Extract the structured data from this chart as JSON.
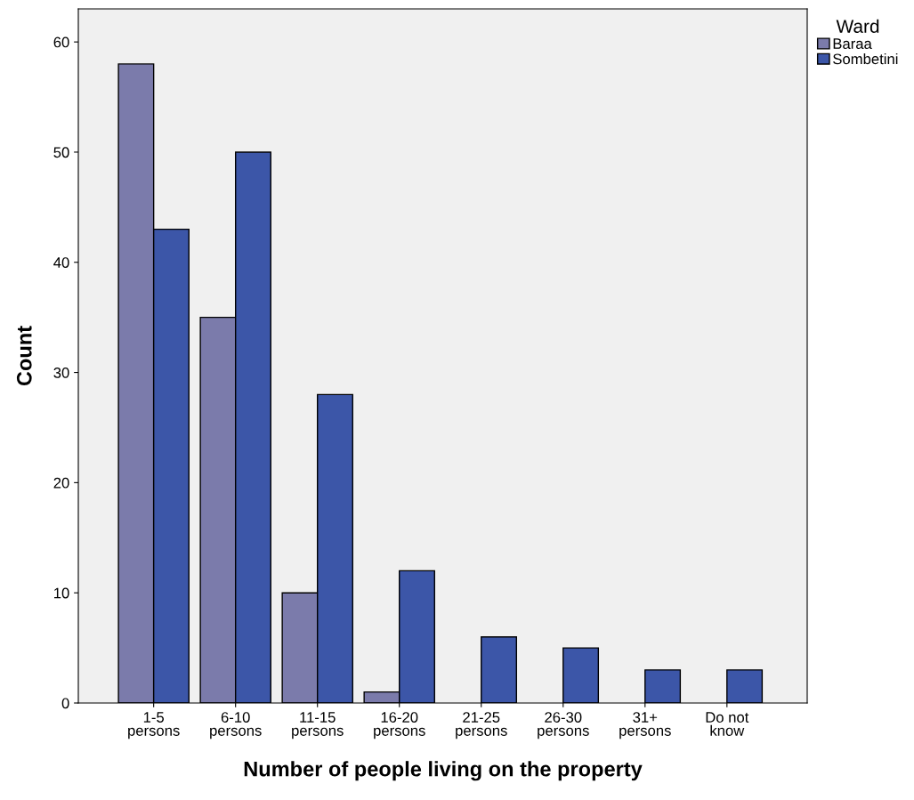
{
  "chart_data": {
    "type": "bar",
    "xlabel": "Number of people living on the property",
    "ylabel": "Count",
    "categories": [
      "1-5\npersons",
      "6-10\npersons",
      "11-15\npersons",
      "16-20\npersons",
      "21-25\npersons",
      "26-30\npersons",
      "31+\npersons",
      "Do not\nknow"
    ],
    "series": [
      {
        "name": "Baraa",
        "color": "#7b7bab",
        "values": [
          58,
          35,
          10,
          1,
          null,
          null,
          null,
          null
        ]
      },
      {
        "name": "Sombetini",
        "color": "#3c56a8",
        "values": [
          43,
          50,
          28,
          12,
          6,
          5,
          3,
          3
        ]
      }
    ],
    "ylim": [
      0,
      63
    ],
    "yticks": [
      0,
      10,
      20,
      30,
      40,
      50,
      60
    ],
    "grid": false,
    "legend": "top right",
    "legend_title": "Ward"
  }
}
